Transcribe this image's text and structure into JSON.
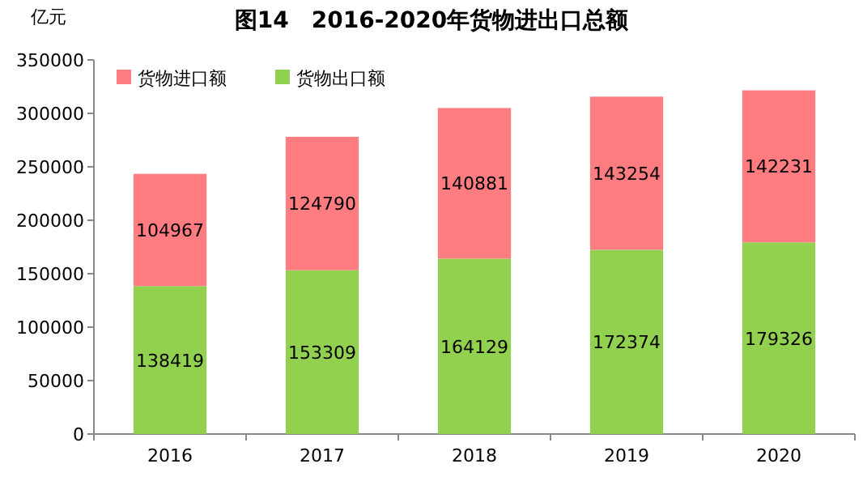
{
  "chart_data": {
    "type": "bar",
    "title": "图14　2016-2020年货物进出口总额",
    "ylabel": "亿元",
    "stacked": true,
    "data_labels": true,
    "legend": "top left",
    "grid": false,
    "categories": [
      "2016",
      "2017",
      "2018",
      "2019",
      "2020"
    ],
    "series": [
      {
        "name": "货物出口额",
        "color": "#92d050",
        "values": [
          138419,
          153309,
          164129,
          172374,
          179326
        ]
      },
      {
        "name": "货物进口额",
        "color": "#ff7c80",
        "values": [
          104967,
          124790,
          140881,
          143254,
          142231
        ]
      }
    ],
    "ylim": [
      0,
      350000
    ],
    "yticks": [
      0,
      50000,
      100000,
      150000,
      200000,
      250000,
      300000,
      350000
    ]
  }
}
